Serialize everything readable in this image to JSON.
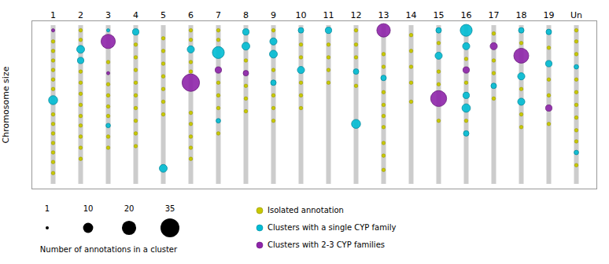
{
  "chart_data": {
    "type": "scatter",
    "categories": [
      "1",
      "2",
      "3",
      "4",
      "5",
      "6",
      "7",
      "8",
      "9",
      "10",
      "11",
      "12",
      "13",
      "14",
      "15",
      "16",
      "17",
      "18",
      "19",
      "Un"
    ],
    "ylabel": "Chromosome size",
    "ylim": [
      1.03,
      -0.03
    ],
    "tick_labels": "x",
    "bars": {
      "y1": 0,
      "y2": 1,
      "color": "#cccccc"
    },
    "series": [
      {
        "name": "Isolated annotation",
        "color": "#c8c800",
        "x": [
          "1",
          "1",
          "1",
          "1",
          "1",
          "1",
          "1",
          "1",
          "1",
          "1",
          "1",
          "1",
          "1",
          "2",
          "2",
          "2",
          "2",
          "2",
          "2",
          "2",
          "2",
          "2",
          "2",
          "2",
          "3",
          "3",
          "3",
          "3",
          "3",
          "3",
          "3",
          "4",
          "4",
          "4",
          "4",
          "4",
          "4",
          "4",
          "4",
          "4",
          "5",
          "5",
          "5",
          "5",
          "5",
          "5",
          "5",
          "6",
          "6",
          "6",
          "6",
          "6",
          "6",
          "6",
          "6",
          "6",
          "7",
          "7",
          "7",
          "7",
          "7",
          "7",
          "8",
          "8",
          "8",
          "8",
          "9",
          "9",
          "9",
          "9",
          "9",
          "10",
          "10",
          "10",
          "10",
          "10",
          "11",
          "11",
          "11",
          "11",
          "12",
          "12",
          "12",
          "12",
          "13",
          "13",
          "13",
          "13",
          "13",
          "13",
          "13",
          "13",
          "13",
          "14",
          "14",
          "14",
          "14",
          "14",
          "15",
          "15",
          "15",
          "15",
          "16",
          "16",
          "16",
          "17",
          "17",
          "17",
          "17",
          "18",
          "18",
          "18",
          "18",
          "19",
          "19",
          "19",
          "19",
          "Un",
          "Un",
          "Un",
          "Un",
          "Un",
          "Un",
          "Un",
          "Un",
          "Un",
          "Un"
        ],
        "y": [
          0.1,
          0.16,
          0.22,
          0.28,
          0.34,
          0.4,
          0.56,
          0.62,
          0.68,
          0.74,
          0.8,
          0.86,
          0.93,
          0.03,
          0.09,
          0.29,
          0.36,
          0.43,
          0.5,
          0.57,
          0.63,
          0.7,
          0.77,
          0.84,
          0.23,
          0.37,
          0.44,
          0.51,
          0.57,
          0.7,
          0.77,
          0.12,
          0.2,
          0.28,
          0.36,
          0.44,
          0.52,
          0.6,
          0.68,
          0.76,
          0.08,
          0.16,
          0.24,
          0.32,
          0.4,
          0.48,
          0.56,
          0.03,
          0.09,
          0.23,
          0.29,
          0.55,
          0.62,
          0.7,
          0.77,
          0.84,
          0.03,
          0.09,
          0.36,
          0.44,
          0.52,
          0.68,
          0.22,
          0.38,
          0.46,
          0.54,
          0.03,
          0.28,
          0.44,
          0.52,
          0.6,
          0.12,
          0.2,
          0.36,
          0.44,
          0.52,
          0.12,
          0.2,
          0.28,
          0.36,
          0.03,
          0.12,
          0.2,
          0.38,
          0.18,
          0.26,
          0.42,
          0.5,
          0.57,
          0.64,
          0.74,
          0.82,
          0.91,
          0.06,
          0.16,
          0.26,
          0.36,
          0.48,
          0.11,
          0.29,
          0.37,
          0.6,
          0.21,
          0.36,
          0.6,
          0.05,
          0.22,
          0.3,
          0.46,
          0.11,
          0.4,
          0.56,
          0.64,
          0.14,
          0.34,
          0.44,
          0.62,
          0.03,
          0.1,
          0.18,
          0.34,
          0.42,
          0.5,
          0.58,
          0.66,
          0.73,
          0.88
        ]
      },
      {
        "name": "Clusters with a single CYP family",
        "color": "#00bcd4",
        "x": [
          "1",
          "2",
          "2",
          "3",
          "3",
          "4",
          "5",
          "6",
          "7",
          "7",
          "8",
          "8",
          "9",
          "9",
          "9",
          "10",
          "10",
          "11",
          "12",
          "12",
          "13",
          "15",
          "15",
          "16",
          "16",
          "16",
          "16",
          "16",
          "17",
          "18",
          "18",
          "18",
          "19",
          "19",
          "Un",
          "Un"
        ],
        "y": [
          0.47,
          0.15,
          0.22,
          0.03,
          0.63,
          0.04,
          0.9,
          0.15,
          0.17,
          0.6,
          0.04,
          0.13,
          0.1,
          0.18,
          0.36,
          0.03,
          0.28,
          0.03,
          0.29,
          0.62,
          0.33,
          0.03,
          0.19,
          0.03,
          0.13,
          0.44,
          0.52,
          0.68,
          0.38,
          0.03,
          0.32,
          0.48,
          0.04,
          0.24,
          0.26,
          0.8
        ],
        "size": [
          8,
          6,
          4,
          1,
          2,
          4,
          6,
          5,
          14,
          2,
          4,
          6,
          5,
          6,
          3,
          3,
          5,
          4,
          3,
          8,
          3,
          3,
          5,
          14,
          5,
          4,
          7,
          3,
          3,
          3,
          5,
          5,
          3,
          4,
          2,
          2
        ]
      },
      {
        "name": "Clusters with 2-3 CYP families",
        "color": "#8e24aa",
        "x": [
          "1",
          "3",
          "3",
          "6",
          "7",
          "8",
          "13",
          "15",
          "16",
          "17",
          "18",
          "19"
        ],
        "y": [
          0.03,
          0.1,
          0.3,
          0.36,
          0.28,
          0.3,
          0.03,
          0.46,
          0.28,
          0.13,
          0.19,
          0.52
        ],
        "size": [
          1,
          20,
          1,
          30,
          4,
          3,
          18,
          25,
          4,
          5,
          22,
          4
        ]
      }
    ],
    "size_legend": {
      "title": "Number of annotations in a cluster",
      "sizes": [
        1,
        10,
        20,
        35
      ]
    }
  }
}
